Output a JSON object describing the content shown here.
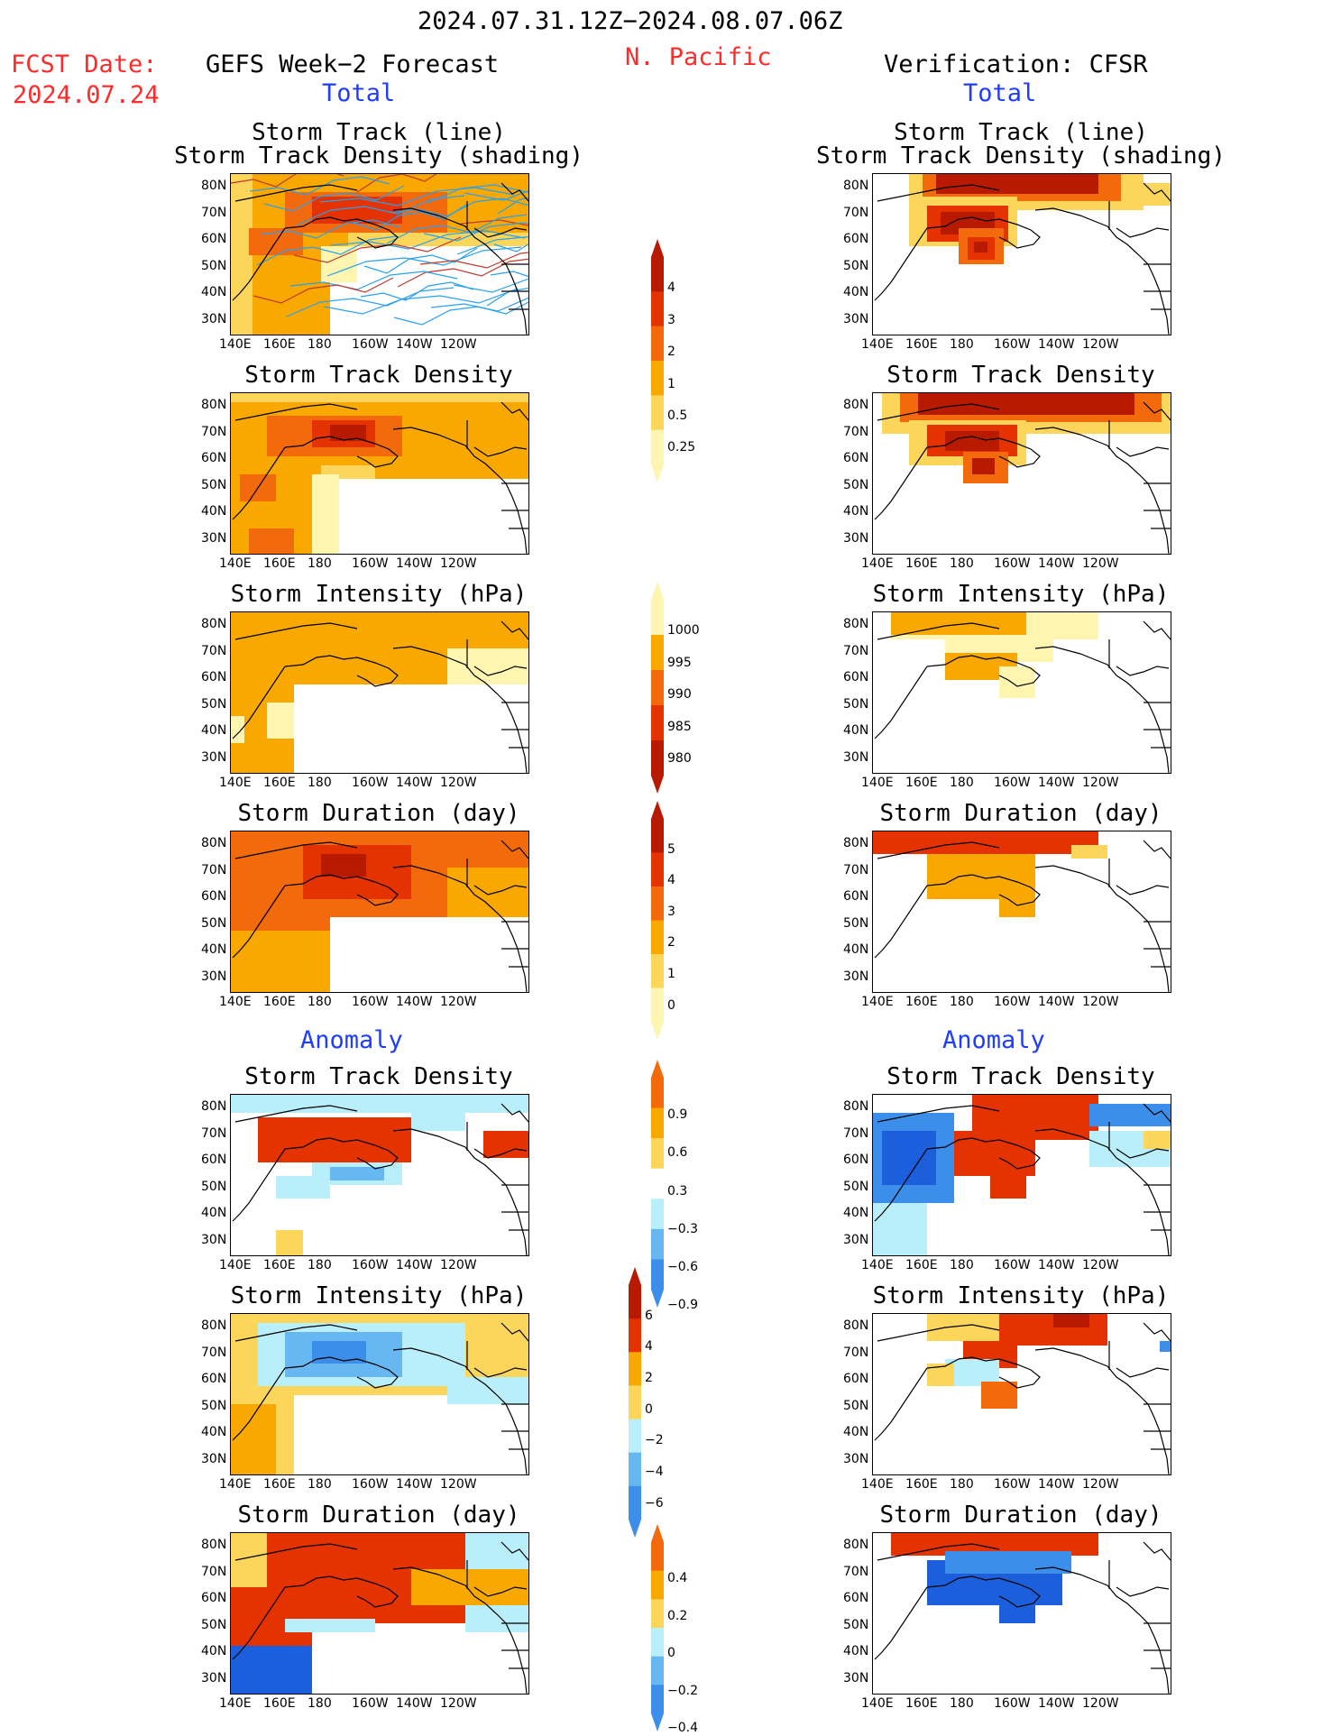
{
  "header": {
    "period": "2024.07.31.12Z−2024.08.07.06Z",
    "fcst_label": "FCST Date:",
    "fcst_date": "2024.07.24",
    "left_title": "GEFS Week−2 Forecast",
    "region": "N. Pacific",
    "right_title": "Verification: CFSR",
    "total_label": "Total",
    "anomaly_label": "Anomaly"
  },
  "colors": {
    "lt_yellow": "#fdf5b0",
    "yellow": "#fbd65a",
    "orange": "#f9a800",
    "dk_orange": "#f36a0c",
    "red": "#e43200",
    "dk_red": "#b81a00",
    "lt_blue": "#b9eefb",
    "blue": "#67b8f2",
    "mid_blue": "#3b8eea",
    "dk_blue": "#1c5fdd",
    "track_blue": "#2aa0ee",
    "track_red": "#c0392b"
  },
  "axes": {
    "lat_ticks": [
      "80N",
      "70N",
      "60N",
      "50N",
      "40N",
      "30N"
    ],
    "lon_ticks": [
      "140E",
      "160E",
      "180",
      "160W",
      "140W",
      "120W"
    ]
  },
  "chart_data": [
    {
      "type": "heatmap",
      "section": "total",
      "source": "forecast",
      "title": "Storm Track (line)\nStorm Track Density (shading)",
      "map": "fc_track"
    },
    {
      "type": "heatmap",
      "section": "total",
      "source": "verification",
      "title": "Storm Track (line)\nStorm Track Density (shading)",
      "map": "vf_track"
    },
    {
      "type": "heatmap",
      "section": "total",
      "source": "forecast",
      "title": "Storm Track Density",
      "map": "fc_density"
    },
    {
      "type": "heatmap",
      "section": "total",
      "source": "verification",
      "title": "Storm Track Density",
      "map": "vf_density"
    },
    {
      "type": "heatmap",
      "section": "total",
      "source": "forecast",
      "title": "Storm Intensity (hPa)",
      "map": "fc_intensity"
    },
    {
      "type": "heatmap",
      "section": "total",
      "source": "verification",
      "title": "Storm Intensity (hPa)",
      "map": "vf_intensity"
    },
    {
      "type": "heatmap",
      "section": "total",
      "source": "forecast",
      "title": "Storm Duration (day)",
      "map": "fc_duration"
    },
    {
      "type": "heatmap",
      "section": "total",
      "source": "verification",
      "title": "Storm Duration (day)",
      "map": "vf_duration"
    },
    {
      "type": "heatmap",
      "section": "anomaly",
      "source": "forecast",
      "title": "Storm Track Density",
      "map": "fc_a_density"
    },
    {
      "type": "heatmap",
      "section": "anomaly",
      "source": "verification",
      "title": "Storm Track Density",
      "map": "vf_a_density"
    },
    {
      "type": "heatmap",
      "section": "anomaly",
      "source": "forecast",
      "title": "Storm Intensity (hPa)",
      "map": "fc_a_intensity"
    },
    {
      "type": "heatmap",
      "section": "anomaly",
      "source": "verification",
      "title": "Storm Intensity (hPa)",
      "map": "vf_a_intensity"
    },
    {
      "type": "heatmap",
      "section": "anomaly",
      "source": "forecast",
      "title": "Storm Duration (day)",
      "map": "fc_a_duration"
    },
    {
      "type": "heatmap",
      "section": "anomaly",
      "source": "verification",
      "title": "Storm Duration (day)",
      "map": "vf_a_duration"
    }
  ],
  "colorbars": [
    {
      "name": "density-total",
      "labels": [
        "4",
        "3",
        "2",
        "1",
        "0.5",
        "0.25"
      ],
      "colors": [
        "#b81a00",
        "#e43200",
        "#f36a0c",
        "#f9a800",
        "#fbd65a",
        "#fdf5b0"
      ]
    },
    {
      "name": "intensity-total",
      "labels": [
        "1000",
        "995",
        "990",
        "985",
        "980"
      ],
      "colors": [
        "#fdf5b0",
        "#f9a800",
        "#f36a0c",
        "#e43200",
        "#b81a00"
      ]
    },
    {
      "name": "duration-total",
      "labels": [
        "5",
        "4",
        "3",
        "2",
        "1",
        "0"
      ],
      "colors": [
        "#b81a00",
        "#e43200",
        "#f36a0c",
        "#f9a800",
        "#fbd65a",
        "#fdf5b0"
      ]
    },
    {
      "name": "density-anom",
      "labels": [
        "0.9",
        "0.6",
        "0.3",
        "−0.3",
        "−0.6",
        "−0.9"
      ],
      "colors": [
        "#f36a0c",
        "#f9a800",
        "#fbd65a",
        "#ffffff",
        "#b9eefb",
        "#67b8f2",
        "#3b8eea"
      ]
    },
    {
      "name": "intensity-anom",
      "labels": [
        "6",
        "4",
        "2",
        "0",
        "−2",
        "−4",
        "−6"
      ],
      "colors": [
        "#b81a00",
        "#e43200",
        "#f9a800",
        "#fbd65a",
        "#b9eefb",
        "#67b8f2",
        "#3b8eea"
      ]
    },
    {
      "name": "duration-anom",
      "labels": [
        "0.4",
        "0.2",
        "0",
        "−0.2",
        "−0.4"
      ],
      "colors": [
        "#f36a0c",
        "#f9a800",
        "#fbd65a",
        "#b9eefb",
        "#67b8f2",
        "#3b8eea"
      ]
    }
  ],
  "maps": {
    "fc_track": {
      "bg": "#f9a800",
      "tracks": true,
      "rects": [
        {
          "c": "#fbd65a",
          "r": [
            0,
            0,
            24,
            180
          ]
        },
        {
          "c": "#fdf5b0",
          "r": [
            170,
            75,
            160,
            103
          ]
        },
        {
          "c": "#fbd65a",
          "r": [
            130,
            65,
            200,
            20
          ]
        },
        {
          "c": "#f36a0c",
          "r": [
            60,
            20,
            180,
            45
          ]
        },
        {
          "c": "#e43200",
          "r": [
            90,
            25,
            100,
            30
          ]
        },
        {
          "c": "#f36a0c",
          "r": [
            20,
            60,
            60,
            30
          ]
        },
        {
          "c": "#ffffff",
          "r": [
            110,
            80,
            220,
            98
          ]
        },
        {
          "c": "#fdf5b0",
          "r": [
            100,
            80,
            40,
            40
          ]
        }
      ]
    },
    "vf_track": {
      "bg": "#ffffff",
      "tracks": false,
      "rects": [
        {
          "c": "#fbd65a",
          "r": [
            40,
            0,
            260,
            40
          ]
        },
        {
          "c": "#f36a0c",
          "r": [
            55,
            0,
            220,
            30
          ]
        },
        {
          "c": "#b81a00",
          "r": [
            70,
            0,
            180,
            22
          ]
        },
        {
          "c": "#fbd65a",
          "r": [
            40,
            25,
            120,
            55
          ]
        },
        {
          "c": "#e43200",
          "r": [
            60,
            35,
            90,
            40
          ]
        },
        {
          "c": "#b81a00",
          "r": [
            75,
            42,
            60,
            25
          ]
        },
        {
          "c": "#f36a0c",
          "r": [
            95,
            60,
            50,
            40
          ]
        },
        {
          "c": "#e43200",
          "r": [
            105,
            70,
            30,
            25
          ]
        },
        {
          "c": "#b81a00",
          "r": [
            112,
            75,
            15,
            12
          ]
        },
        {
          "c": "#fbd65a",
          "r": [
            298,
            10,
            32,
            25
          ]
        }
      ]
    },
    "fc_density": {
      "bg": "#f9a800",
      "tracks": false,
      "rects": [
        {
          "c": "#fbd65a",
          "r": [
            0,
            0,
            330,
            10
          ]
        },
        {
          "c": "#f36a0c",
          "r": [
            40,
            25,
            150,
            45
          ]
        },
        {
          "c": "#e43200",
          "r": [
            90,
            30,
            70,
            30
          ]
        },
        {
          "c": "#b81a00",
          "r": [
            110,
            35,
            40,
            18
          ]
        },
        {
          "c": "#f36a0c",
          "r": [
            10,
            90,
            40,
            30
          ]
        },
        {
          "c": "#fbd65a",
          "r": [
            100,
            80,
            60,
            30
          ]
        },
        {
          "c": "#ffffff",
          "r": [
            110,
            95,
            220,
            83
          ]
        },
        {
          "c": "#fdf5b0",
          "r": [
            90,
            90,
            30,
            88
          ]
        },
        {
          "c": "#f36a0c",
          "r": [
            20,
            150,
            50,
            28
          ]
        }
      ]
    },
    "vf_density": {
      "bg": "#ffffff",
      "tracks": false,
      "rects": [
        {
          "c": "#fbd65a",
          "r": [
            10,
            0,
            320,
            45
          ]
        },
        {
          "c": "#f36a0c",
          "r": [
            30,
            0,
            290,
            32
          ]
        },
        {
          "c": "#b81a00",
          "r": [
            50,
            0,
            240,
            24
          ]
        },
        {
          "c": "#fbd65a",
          "r": [
            40,
            30,
            130,
            50
          ]
        },
        {
          "c": "#e43200",
          "r": [
            60,
            35,
            100,
            35
          ]
        },
        {
          "c": "#b81a00",
          "r": [
            80,
            42,
            60,
            22
          ]
        },
        {
          "c": "#f36a0c",
          "r": [
            100,
            65,
            50,
            35
          ]
        },
        {
          "c": "#b81a00",
          "r": [
            110,
            72,
            25,
            18
          ]
        }
      ]
    },
    "fc_intensity": {
      "bg": "#f9a800",
      "tracks": false,
      "rects": [
        {
          "c": "#fdf5b0",
          "r": [
            240,
            40,
            90,
            60
          ]
        },
        {
          "c": "#ffffff",
          "r": [
            70,
            80,
            260,
            98
          ]
        },
        {
          "c": "#fdf5b0",
          "r": [
            40,
            100,
            30,
            40
          ]
        },
        {
          "c": "#fdf5b0",
          "r": [
            0,
            115,
            15,
            30
          ]
        }
      ]
    },
    "vf_intensity": {
      "bg": "#ffffff",
      "tracks": false,
      "rects": [
        {
          "c": "#fdf5b0",
          "r": [
            20,
            0,
            230,
            30
          ]
        },
        {
          "c": "#f9a800",
          "r": [
            20,
            0,
            150,
            25
          ]
        },
        {
          "c": "#fdf5b0",
          "r": [
            80,
            25,
            120,
            30
          ]
        },
        {
          "c": "#f9a800",
          "r": [
            80,
            45,
            80,
            30
          ]
        },
        {
          "c": "#fdf5b0",
          "r": [
            140,
            60,
            40,
            35
          ]
        }
      ]
    },
    "fc_duration": {
      "bg": "#f36a0c",
      "tracks": false,
      "rects": [
        {
          "c": "#e43200",
          "r": [
            80,
            15,
            120,
            60
          ]
        },
        {
          "c": "#b81a00",
          "r": [
            100,
            25,
            50,
            25
          ]
        },
        {
          "c": "#f9a800",
          "r": [
            240,
            40,
            90,
            60
          ]
        },
        {
          "c": "#ffffff",
          "r": [
            110,
            95,
            220,
            83
          ]
        },
        {
          "c": "#f9a800",
          "r": [
            0,
            110,
            110,
            68
          ]
        }
      ]
    },
    "vf_duration": {
      "bg": "#ffffff",
      "tracks": false,
      "rects": [
        {
          "c": "#e43200",
          "r": [
            0,
            0,
            250,
            25
          ]
        },
        {
          "c": "#f9a800",
          "r": [
            60,
            25,
            120,
            50
          ]
        },
        {
          "c": "#f9a800",
          "r": [
            140,
            60,
            40,
            35
          ]
        },
        {
          "c": "#fbd65a",
          "r": [
            220,
            15,
            40,
            15
          ]
        }
      ]
    },
    "fc_a_density": {
      "bg": "#ffffff",
      "tracks": false,
      "rects": [
        {
          "c": "#b9eefb",
          "r": [
            0,
            0,
            330,
            20
          ]
        },
        {
          "c": "#e43200",
          "r": [
            30,
            25,
            170,
            50
          ]
        },
        {
          "c": "#e43200",
          "r": [
            280,
            40,
            50,
            30
          ]
        },
        {
          "c": "#b9eefb",
          "r": [
            90,
            75,
            100,
            25
          ]
        },
        {
          "c": "#67b8f2",
          "r": [
            110,
            80,
            60,
            15
          ]
        },
        {
          "c": "#b9eefb",
          "r": [
            50,
            90,
            60,
            25
          ]
        },
        {
          "c": "#fbd65a",
          "r": [
            50,
            150,
            30,
            28
          ]
        },
        {
          "c": "#b9eefb",
          "r": [
            200,
            20,
            60,
            20
          ]
        }
      ]
    },
    "vf_a_density": {
      "bg": "#ffffff",
      "tracks": false,
      "rects": [
        {
          "c": "#3b8eea",
          "r": [
            0,
            20,
            90,
            100
          ]
        },
        {
          "c": "#1c5fdd",
          "r": [
            10,
            40,
            60,
            60
          ]
        },
        {
          "c": "#b9eefb",
          "r": [
            0,
            120,
            60,
            58
          ]
        },
        {
          "c": "#e43200",
          "r": [
            110,
            0,
            140,
            50
          ]
        },
        {
          "c": "#e43200",
          "r": [
            90,
            40,
            90,
            50
          ]
        },
        {
          "c": "#e43200",
          "r": [
            130,
            80,
            40,
            35
          ]
        },
        {
          "c": "#3b8eea",
          "r": [
            240,
            10,
            90,
            25
          ]
        },
        {
          "c": "#b9eefb",
          "r": [
            240,
            40,
            90,
            40
          ]
        },
        {
          "c": "#fbd65a",
          "r": [
            300,
            40,
            30,
            20
          ]
        }
      ]
    },
    "fc_a_intensity": {
      "bg": "#fbd65a",
      "tracks": false,
      "rects": [
        {
          "c": "#b9eefb",
          "r": [
            30,
            10,
            230,
            70
          ]
        },
        {
          "c": "#67b8f2",
          "r": [
            60,
            20,
            130,
            50
          ]
        },
        {
          "c": "#3b8eea",
          "r": [
            90,
            30,
            60,
            25
          ]
        },
        {
          "c": "#ffffff",
          "r": [
            70,
            90,
            260,
            88
          ]
        },
        {
          "c": "#f9a800",
          "r": [
            0,
            100,
            50,
            78
          ]
        },
        {
          "c": "#b9eefb",
          "r": [
            240,
            70,
            90,
            30
          ]
        }
      ]
    },
    "vf_a_intensity": {
      "bg": "#ffffff",
      "tracks": false,
      "rects": [
        {
          "c": "#fbd65a",
          "r": [
            60,
            0,
            200,
            30
          ]
        },
        {
          "c": "#e43200",
          "r": [
            140,
            0,
            120,
            35
          ]
        },
        {
          "c": "#b81a00",
          "r": [
            200,
            0,
            40,
            15
          ]
        },
        {
          "c": "#e43200",
          "r": [
            100,
            30,
            60,
            30
          ]
        },
        {
          "c": "#b9eefb",
          "r": [
            80,
            50,
            60,
            30
          ]
        },
        {
          "c": "#f36a0c",
          "r": [
            120,
            75,
            40,
            30
          ]
        },
        {
          "c": "#fbd65a",
          "r": [
            60,
            55,
            30,
            25
          ]
        },
        {
          "c": "#3b8eea",
          "r": [
            318,
            30,
            12,
            12
          ]
        }
      ]
    },
    "fc_a_duration": {
      "bg": "#e43200",
      "tracks": false,
      "rects": [
        {
          "c": "#fbd65a",
          "r": [
            0,
            0,
            40,
            60
          ]
        },
        {
          "c": "#b9eefb",
          "r": [
            260,
            0,
            70,
            40
          ]
        },
        {
          "c": "#f9a800",
          "r": [
            200,
            40,
            130,
            40
          ]
        },
        {
          "c": "#ffffff",
          "r": [
            90,
            100,
            240,
            78
          ]
        },
        {
          "c": "#b9eefb",
          "r": [
            60,
            95,
            100,
            15
          ]
        },
        {
          "c": "#1c5fdd",
          "r": [
            0,
            125,
            90,
            53
          ]
        },
        {
          "c": "#b9eefb",
          "r": [
            260,
            80,
            70,
            30
          ]
        }
      ]
    },
    "vf_a_duration": {
      "bg": "#ffffff",
      "tracks": false,
      "rects": [
        {
          "c": "#e43200",
          "r": [
            20,
            0,
            230,
            25
          ]
        },
        {
          "c": "#1c5fdd",
          "r": [
            60,
            30,
            150,
            50
          ]
        },
        {
          "c": "#3b8eea",
          "r": [
            80,
            20,
            140,
            25
          ]
        },
        {
          "c": "#1c5fdd",
          "r": [
            140,
            60,
            40,
            40
          ]
        }
      ]
    }
  }
}
